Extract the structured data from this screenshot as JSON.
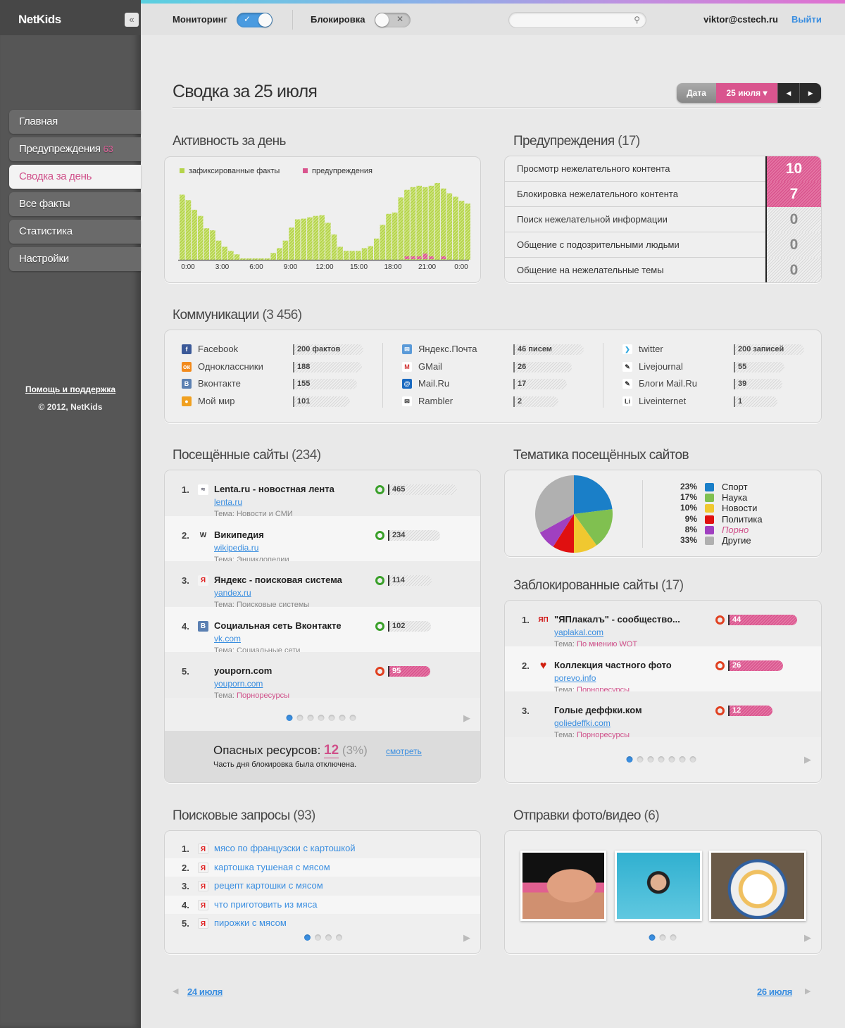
{
  "app": {
    "logo": "NetKids",
    "collapse_icon": "«"
  },
  "sidebar": {
    "items": [
      {
        "label": "Главная"
      },
      {
        "label": "Предупреждения",
        "badge": "63"
      },
      {
        "label": "Сводка за день",
        "active": true
      },
      {
        "label": "Все факты"
      },
      {
        "label": "Статистика"
      },
      {
        "label": "Настройки"
      }
    ],
    "help": "Помощь и поддержка",
    "copyright": "© 2012, NetKids"
  },
  "topbar": {
    "monitoring_label": "Мониторинг",
    "monitoring_on": true,
    "blocking_label": "Блокировка",
    "blocking_on": false,
    "search_placeholder": "",
    "user": "viktor@cstech.ru",
    "logout": "Выйти"
  },
  "page": {
    "title": "Сводка за 25 июля",
    "date_label": "Дата",
    "date_value": "25 июля ▾",
    "prev": "◂",
    "next": "▸"
  },
  "activity": {
    "title": "Активность за день",
    "legend": [
      "зафиксированные факты",
      "предупреждения"
    ]
  },
  "chart_data": {
    "type": "bar",
    "stacked": true,
    "x_ticks": [
      "0:00",
      "3:00",
      "6:00",
      "9:00",
      "12:00",
      "15:00",
      "18:00",
      "21:00",
      "0:00"
    ],
    "bins_per_hour": 2,
    "ylim": [
      0,
      115
    ],
    "grid": false,
    "legend_position": "top-left",
    "series": [
      {
        "name": "зафиксированные факты",
        "color": "#b5d44a",
        "values": [
          95,
          87,
          73,
          64,
          46,
          43,
          28,
          19,
          13,
          8,
          2,
          2,
          2,
          2,
          2,
          10,
          17,
          28,
          47,
          59,
          60,
          62,
          64,
          65,
          54,
          37,
          19,
          13,
          13,
          13,
          17,
          20,
          31,
          51,
          67,
          69,
          91,
          102,
          106,
          108,
          106,
          108,
          112,
          104,
          97,
          92,
          86,
          82
        ]
      },
      {
        "name": "предупреждения",
        "color": "#d9558e",
        "values": [
          0,
          0,
          0,
          0,
          0,
          0,
          0,
          0,
          0,
          0,
          0,
          0,
          0,
          0,
          0,
          0,
          0,
          0,
          0,
          0,
          0,
          0,
          0,
          0,
          0,
          0,
          0,
          0,
          0,
          0,
          0,
          0,
          0,
          0,
          0,
          0,
          0,
          4,
          4,
          4,
          8,
          4,
          0,
          4,
          0,
          0,
          0,
          0
        ]
      }
    ]
  },
  "warnings": {
    "title": "Предупреждения",
    "count": "(17)",
    "rows": [
      {
        "label": "Просмотр нежелательного контента",
        "value": "10",
        "alert": true
      },
      {
        "label": "Блокировка нежелательного контента",
        "value": "7",
        "alert": true
      },
      {
        "label": "Поиск нежелательной информации",
        "value": "0",
        "alert": false
      },
      {
        "label": "Общение с подозрительными людьми",
        "value": "0",
        "alert": false
      },
      {
        "label": "Общение на нежелательные темы",
        "value": "0",
        "alert": false
      }
    ]
  },
  "communications": {
    "title": "Коммуникации",
    "count": "(3 456)",
    "columns": [
      [
        {
          "icon": "facebook-icon",
          "name": "Facebook",
          "value": "200 фактов",
          "n": 200
        },
        {
          "icon": "odnoklassniki-icon",
          "name": "Одноклассники",
          "value": "188",
          "n": 188
        },
        {
          "icon": "vkontakte-icon",
          "name": "Вконтакте",
          "value": "155",
          "n": 155
        },
        {
          "icon": "moy-mir-icon",
          "name": "Мой мир",
          "value": "101",
          "n": 101
        }
      ],
      [
        {
          "icon": "yandex-mail-icon",
          "name": "Яндекс.Почта",
          "value": "46 писем",
          "n": 46
        },
        {
          "icon": "gmail-icon",
          "name": "GMail",
          "value": "26",
          "n": 26
        },
        {
          "icon": "mailru-icon",
          "name": "Mail.Ru",
          "value": "17",
          "n": 17
        },
        {
          "icon": "rambler-icon",
          "name": "Rambler",
          "value": "2",
          "n": 2
        }
      ],
      [
        {
          "icon": "twitter-icon",
          "name": "twitter",
          "value": "200 записей",
          "n": 200
        },
        {
          "icon": "livejournal-icon",
          "name": "Livejournal",
          "value": "55",
          "n": 55
        },
        {
          "icon": "mailru-blogs-icon",
          "name": "Блоги Mail.Ru",
          "value": "39",
          "n": 39
        },
        {
          "icon": "liveinternet-icon",
          "name": "Liveinternet",
          "value": "1",
          "n": 1
        }
      ]
    ]
  },
  "visited": {
    "title": "Посещённые сайты",
    "count": "(234)",
    "theme_label": "Тема:",
    "rows": [
      {
        "num": "1.",
        "icon": "lenta-icon",
        "title": "Lenta.ru - новостная лента",
        "url": "lenta.ru",
        "theme": "Новости и СМИ",
        "value": "465",
        "danger": false
      },
      {
        "num": "2.",
        "icon": "wikipedia-icon",
        "title": "Википедия",
        "url": "wikipedia.ru",
        "theme": "Энциклопедии",
        "value": "234",
        "danger": false
      },
      {
        "num": "3.",
        "icon": "yandex-icon",
        "title": "Яндекс - поисковая система",
        "url": "yandex.ru",
        "theme": "Поисковые системы",
        "value": "114",
        "danger": false
      },
      {
        "num": "4.",
        "icon": "vkontakte-icon",
        "title": "Социальная сеть Вконтакте",
        "url": "vk.com",
        "theme": "Социальные сети",
        "value": "102",
        "danger": false
      },
      {
        "num": "5.",
        "icon": "",
        "title": "youporn.com",
        "url": "youporn.com",
        "theme": "Порноресурсы",
        "value": "95",
        "danger": true
      }
    ],
    "pages": 7,
    "current_page": 1,
    "danger_label": "Опасных ресурсов:",
    "danger_count": "12",
    "danger_pct": "(3%)",
    "view_link": "смотреть",
    "note": "Часть дня блокировка была отключена."
  },
  "topics": {
    "title": "Тематика посещённых сайтов",
    "items": [
      {
        "pct": "23%",
        "label": "Спорт",
        "value": 23,
        "color": "#1a7fc8"
      },
      {
        "pct": "17%",
        "label": "Наука",
        "value": 17,
        "color": "#80c050"
      },
      {
        "pct": "10%",
        "label": "Новости",
        "value": 10,
        "color": "#f0c830"
      },
      {
        "pct": "9%",
        "label": "Политика",
        "value": 9,
        "color": "#e01010"
      },
      {
        "pct": "8%",
        "label": "Порно",
        "value": 8,
        "color": "#a040c0"
      },
      {
        "pct": "33%",
        "label": "Другие",
        "value": 33,
        "color": "#b0b0b0"
      }
    ]
  },
  "blocked": {
    "title": "Заблокированные сайты",
    "count": "(17)",
    "theme_label": "Тема:",
    "rows": [
      {
        "num": "1.",
        "icon": "yaplakal-icon",
        "title": "\"ЯПлакалъ\" - сообщество...",
        "url": "yaplakal.com",
        "theme": "По мнению WOT",
        "value": "44"
      },
      {
        "num": "2.",
        "icon": "devil-heart-icon",
        "title": "Коллекция частного фото",
        "url": "porevo.info",
        "theme": "Порноресурсы",
        "value": "26"
      },
      {
        "num": "3.",
        "icon": "",
        "title": "Голые деффки.ком",
        "url": "goliedeffki.com",
        "theme": "Порноресурсы",
        "value": "12"
      }
    ],
    "pages": 7,
    "current_page": 1
  },
  "searches": {
    "title": "Поисковые запросы",
    "count": "(93)",
    "rows": [
      {
        "num": "1.",
        "query": "мясо по французски с картошкой"
      },
      {
        "num": "2.",
        "query": "картошка тушеная с мясом"
      },
      {
        "num": "3.",
        "query": "рецепт картошки с мясом"
      },
      {
        "num": "4.",
        "query": "что приготовить из мяса"
      },
      {
        "num": "5.",
        "query": "пирожки с мясом"
      }
    ],
    "pages": 4,
    "current_page": 1
  },
  "photos": {
    "title": "Отправки фото/видео",
    "count": "(6)",
    "pages": 3,
    "current_page": 1
  },
  "footer_nav": {
    "prev": "24 июля",
    "next": "26 июля"
  }
}
